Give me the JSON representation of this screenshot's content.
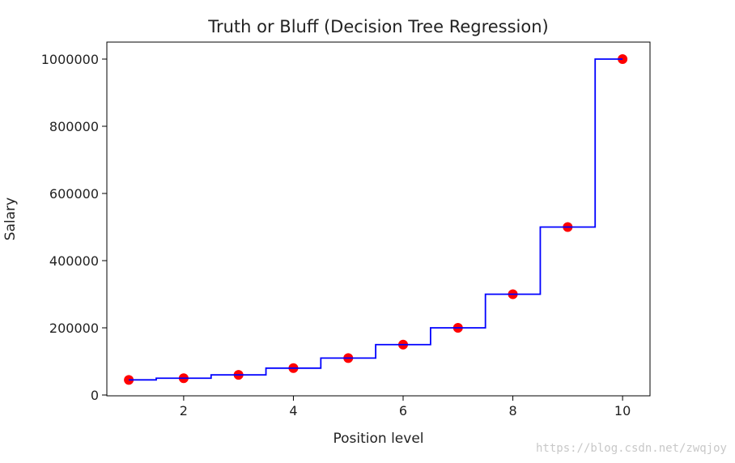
{
  "chart_data": {
    "type": "scatter",
    "title": "Truth or Bluff (Decision Tree Regression)",
    "xlabel": "Position level",
    "ylabel": "Salary",
    "xlim": [
      0.6,
      10.5
    ],
    "ylim": [
      0,
      1000000
    ],
    "xticks": [
      2,
      4,
      6,
      8,
      10
    ],
    "yticks": [
      0,
      200000,
      400000,
      600000,
      800000,
      1000000
    ],
    "grid": false,
    "series": [
      {
        "type": "scatter",
        "color": "#ff0000",
        "x": [
          1,
          2,
          3,
          4,
          5,
          6,
          7,
          8,
          9,
          10
        ],
        "y": [
          45000,
          50000,
          60000,
          80000,
          110000,
          150000,
          200000,
          300000,
          500000,
          1000000
        ]
      },
      {
        "type": "step",
        "color": "#0000ff",
        "x": [
          1,
          1.5,
          1.5,
          2.5,
          2.5,
          3.5,
          3.5,
          4.5,
          4.5,
          5.5,
          5.5,
          6.5,
          6.5,
          7.5,
          7.5,
          8.5,
          8.5,
          9.5,
          9.5,
          10
        ],
        "y": [
          45000,
          45000,
          50000,
          50000,
          60000,
          60000,
          80000,
          80000,
          110000,
          110000,
          150000,
          150000,
          200000,
          200000,
          300000,
          300000,
          500000,
          500000,
          1000000,
          1000000
        ]
      }
    ]
  },
  "watermark": "https://blog.csdn.net/zwqjoy"
}
